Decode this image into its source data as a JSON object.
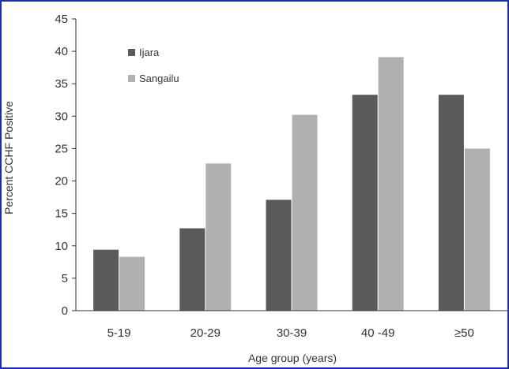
{
  "chart_data": {
    "type": "bar",
    "title": "",
    "xlabel": "Age group (years)",
    "ylabel": "Percent CCHF Positive",
    "categories": [
      "5-19",
      "20-29",
      "30-39",
      "40 -49",
      "≥50"
    ],
    "series": [
      {
        "name": "Ijara",
        "color": "#5a5a5a",
        "values": [
          9.4,
          12.7,
          17.1,
          33.3,
          33.3
        ]
      },
      {
        "name": "Sangailu",
        "color": "#b0b0b0",
        "values": [
          8.3,
          22.7,
          30.2,
          39.1,
          25.0
        ]
      }
    ],
    "ylim": [
      0,
      45
    ],
    "yticks": [
      0,
      5,
      10,
      15,
      20,
      25,
      30,
      35,
      40,
      45
    ],
    "legend_position": "top-left",
    "grid": false
  }
}
